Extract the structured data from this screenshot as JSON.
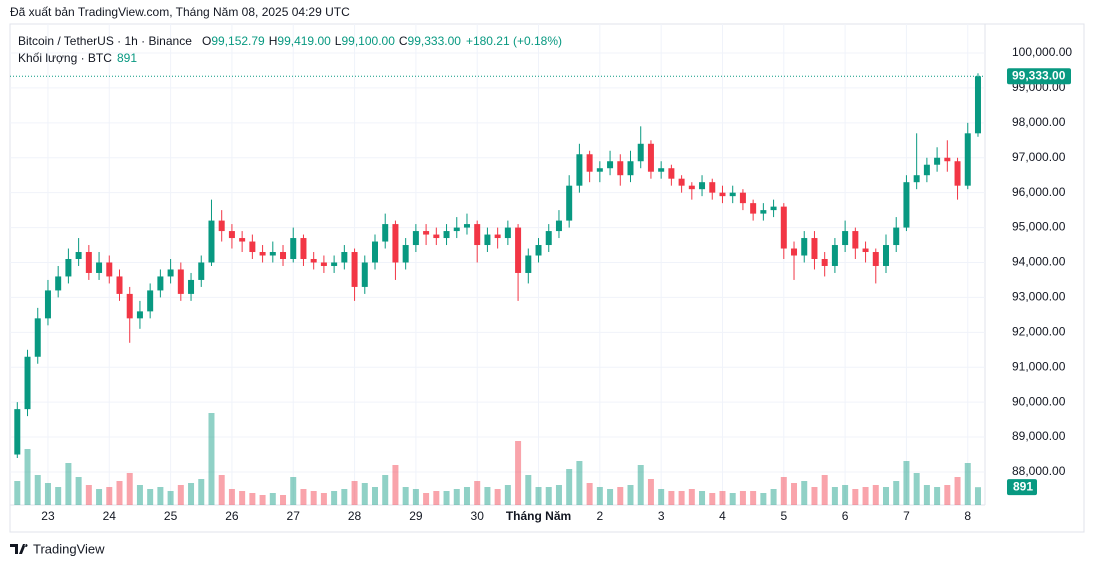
{
  "header": {
    "published": "Đã xuất bản TradingView.com, Tháng Năm 08, 2025 04:29 UTC"
  },
  "legend": {
    "symbol": "Bitcoin / TetherUS · 1h · Binance",
    "ohlc": [
      {
        "key": "O",
        "text": "99,152.79"
      },
      {
        "key": "H",
        "text": "99,419.00"
      },
      {
        "key": "L",
        "text": "99,100.00"
      },
      {
        "key": "C",
        "text": "99,333.00"
      }
    ],
    "change": "+180.21 (+0.18%)",
    "volume_title": "Khối lượng · BTC"
  },
  "footer": {
    "logo": "TradingView"
  },
  "chart_data": {
    "type": "candlestick",
    "up_color": "#089981",
    "down_color": "#f23645",
    "grid": true,
    "categories": [
      null,
      null,
      null,
      "23",
      null,
      null,
      null,
      null,
      null,
      "24",
      null,
      null,
      null,
      null,
      null,
      "25",
      null,
      null,
      null,
      null,
      null,
      "26",
      null,
      null,
      null,
      null,
      null,
      "27",
      null,
      null,
      null,
      null,
      null,
      "28",
      null,
      null,
      null,
      null,
      null,
      "29",
      null,
      null,
      null,
      null,
      null,
      "30",
      null,
      null,
      null,
      null,
      null,
      "Tháng Năm",
      null,
      null,
      null,
      null,
      null,
      "2",
      null,
      null,
      null,
      null,
      null,
      "3",
      null,
      null,
      null,
      null,
      null,
      "4",
      null,
      null,
      null,
      null,
      null,
      "5",
      null,
      null,
      null,
      null,
      null,
      "6",
      null,
      null,
      null,
      null,
      null,
      "7",
      null,
      null,
      null,
      null,
      null,
      "8",
      null
    ],
    "open": [
      88500,
      89800,
      91300,
      92400,
      93200,
      93600,
      94100,
      94300,
      93700,
      94000,
      93600,
      93100,
      92400,
      92600,
      93200,
      93600,
      93800,
      93100,
      93500,
      94000,
      95200,
      94900,
      94700,
      94600,
      94300,
      94200,
      94300,
      94100,
      94700,
      94100,
      94000,
      93900,
      94000,
      94300,
      93300,
      94000,
      94600,
      95100,
      94000,
      94500,
      94900,
      94800,
      94700,
      94900,
      95000,
      95100,
      94500,
      94800,
      94700,
      95000,
      93700,
      94200,
      94500,
      94900,
      95200,
      96200,
      97100,
      96600,
      96700,
      96900,
      96500,
      96900,
      97400,
      96600,
      96700,
      96400,
      96200,
      96100,
      96300,
      96000,
      95900,
      96000,
      95700,
      95400,
      95500,
      95600,
      94400,
      94200,
      94700,
      94100,
      93900,
      94500,
      94900,
      94400,
      94300,
      93900,
      94500,
      95000,
      96300,
      96500,
      96800,
      97000,
      96900,
      96200,
      97700
    ],
    "high": [
      90000,
      91500,
      92700,
      93500,
      93900,
      94400,
      94700,
      94500,
      94300,
      94200,
      93800,
      93300,
      92900,
      93400,
      93800,
      94100,
      94000,
      93700,
      94200,
      95800,
      95500,
      95100,
      94900,
      94800,
      94500,
      94600,
      94500,
      95000,
      94800,
      94300,
      94200,
      94200,
      94500,
      94400,
      94200,
      94800,
      95400,
      95200,
      94700,
      95100,
      95100,
      95000,
      95100,
      95300,
      95400,
      95200,
      95000,
      95000,
      95200,
      95100,
      94400,
      94700,
      95100,
      95500,
      96500,
      97400,
      97200,
      96900,
      97200,
      97100,
      97200,
      97900,
      97500,
      96900,
      96800,
      96500,
      96300,
      96500,
      96400,
      96200,
      96200,
      96100,
      95800,
      95700,
      95800,
      95700,
      94600,
      94900,
      94900,
      94300,
      94700,
      95200,
      95000,
      94600,
      94400,
      94800,
      95300,
      96500,
      97700,
      97000,
      97300,
      97500,
      97000,
      98000,
      99419
    ],
    "low": [
      88400,
      89600,
      91100,
      92200,
      93000,
      93400,
      93900,
      93500,
      93500,
      93400,
      92900,
      91700,
      92100,
      92400,
      93000,
      93400,
      92900,
      92900,
      93300,
      93900,
      94600,
      94400,
      94300,
      94100,
      94000,
      94000,
      93900,
      94000,
      93900,
      93800,
      93700,
      93700,
      93800,
      92900,
      93100,
      93800,
      94400,
      93500,
      93800,
      94300,
      94500,
      94500,
      94500,
      94700,
      94800,
      94000,
      94300,
      94400,
      94500,
      92900,
      93400,
      94000,
      94300,
      94700,
      95000,
      96000,
      96300,
      96300,
      96500,
      96200,
      96300,
      96700,
      96400,
      96400,
      96200,
      96000,
      95800,
      95900,
      95800,
      95700,
      95700,
      95500,
      95200,
      95200,
      95300,
      94100,
      93500,
      94000,
      93800,
      93600,
      93700,
      94300,
      94100,
      94000,
      93400,
      93700,
      94300,
      94900,
      96100,
      96300,
      96600,
      96600,
      95800,
      96100,
      97600
    ],
    "close": [
      89800,
      91300,
      92400,
      93200,
      93600,
      94100,
      94300,
      93700,
      94000,
      93600,
      93100,
      92400,
      92600,
      93200,
      93600,
      93800,
      93100,
      93500,
      94000,
      95200,
      94900,
      94700,
      94600,
      94300,
      94200,
      94300,
      94100,
      94700,
      94100,
      94000,
      93900,
      94000,
      94300,
      93300,
      94000,
      94600,
      95100,
      94000,
      94500,
      94900,
      94800,
      94700,
      94900,
      95000,
      95100,
      94500,
      94800,
      94700,
      95000,
      93700,
      94200,
      94500,
      94900,
      95200,
      96200,
      97100,
      96600,
      96700,
      96900,
      96500,
      96900,
      97400,
      96600,
      96700,
      96400,
      96200,
      96100,
      96300,
      96000,
      95900,
      96000,
      95700,
      95400,
      95500,
      95600,
      94400,
      94200,
      94700,
      94100,
      93900,
      94500,
      94900,
      94400,
      94300,
      93900,
      94500,
      95000,
      96300,
      96500,
      96800,
      97000,
      96900,
      96200,
      97700,
      99333
    ],
    "volume": [
      1200,
      2800,
      1500,
      1100,
      900,
      2100,
      1400,
      1000,
      800,
      900,
      1200,
      1600,
      1000,
      800,
      900,
      700,
      1000,
      1100,
      1300,
      4600,
      1500,
      800,
      700,
      600,
      500,
      600,
      500,
      1400,
      800,
      700,
      600,
      700,
      800,
      1200,
      1100,
      900,
      1500,
      2000,
      900,
      800,
      600,
      700,
      700,
      800,
      900,
      1200,
      900,
      800,
      1000,
      3200,
      1500,
      900,
      900,
      1000,
      1800,
      2200,
      1100,
      900,
      800,
      900,
      1000,
      2000,
      1300,
      800,
      700,
      700,
      800,
      700,
      600,
      700,
      600,
      700,
      700,
      600,
      800,
      1400,
      1100,
      1200,
      900,
      1500,
      900,
      1000,
      800,
      900,
      1000,
      900,
      1200,
      2200,
      1600,
      1000,
      900,
      1000,
      1400,
      2100,
      891
    ],
    "volume_lim": [
      0,
      5000
    ],
    "ylim": [
      87054,
      100802
    ],
    "yticks": [
      {
        "value": 88000,
        "label": "88,000.00"
      },
      {
        "value": 89000,
        "label": "89,000.00"
      },
      {
        "value": 90000,
        "label": "90,000.00"
      },
      {
        "value": 91000,
        "label": "91,000.00"
      },
      {
        "value": 92000,
        "label": "92,000.00"
      },
      {
        "value": 93000,
        "label": "93,000.00"
      },
      {
        "value": 94000,
        "label": "94,000.00"
      },
      {
        "value": 95000,
        "label": "95,000.00"
      },
      {
        "value": 96000,
        "label": "96,000.00"
      },
      {
        "value": 97000,
        "label": "97,000.00"
      },
      {
        "value": 98000,
        "label": "98,000.00"
      },
      {
        "value": 99000,
        "label": "99,000.00"
      },
      {
        "value": 100000,
        "label": "100,000.00"
      }
    ],
    "last_price": {
      "value": 99333,
      "label": "99,333.00"
    }
  }
}
